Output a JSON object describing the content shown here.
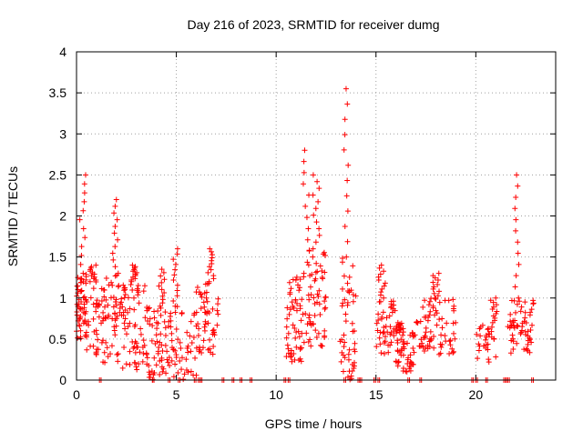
{
  "chart_data": {
    "type": "scatter",
    "title": "Day 216 of 2023, SRMTID for receiver dumg",
    "xlabel": "GPS time / hours",
    "ylabel": "SRMTID / TECUs",
    "xlim": [
      0,
      24
    ],
    "ylim": [
      0,
      4
    ],
    "xticks": [
      0,
      5,
      10,
      15,
      20
    ],
    "xtick_labels": [
      "0",
      "5",
      "10",
      "15",
      "20"
    ],
    "yticks": [
      0,
      0.5,
      1,
      1.5,
      2,
      2.5,
      3,
      3.5,
      4
    ],
    "ytick_labels": [
      "0",
      "0.5",
      "1",
      "1.5",
      "2",
      "2.5",
      "3",
      "3.5",
      "4"
    ],
    "grid": true,
    "marker": "plus",
    "color": "#ff0000",
    "series": [
      {
        "name": "SRMTID",
        "clusters": [
          {
            "x": [
              0.0,
              0.5
            ],
            "y_range": [
              0.5,
              1.3
            ],
            "peak": [
              0.3,
              2.5
            ],
            "n": 55
          },
          {
            "x": [
              0.5,
              1.2
            ],
            "y_range": [
              0.3,
              1.2
            ],
            "peak": [
              0.8,
              1.4
            ],
            "n": 30
          },
          {
            "x": [
              1.2,
              2.3
            ],
            "y_range": [
              0.2,
              1.3
            ],
            "peak": [
              1.95,
              2.2
            ],
            "n": 60
          },
          {
            "x": [
              2.3,
              3.5
            ],
            "y_range": [
              0.1,
              1.2
            ],
            "peak": [
              2.9,
              1.4
            ],
            "n": 60
          },
          {
            "x": [
              3.5,
              4.5
            ],
            "y_range": [
              0.0,
              0.9
            ],
            "peak": [
              4.3,
              1.35
            ],
            "n": 55
          },
          {
            "x": [
              4.5,
              6.0
            ],
            "y_range": [
              0.0,
              0.9
            ],
            "peak": [
              5.0,
              1.6
            ],
            "n": 55
          },
          {
            "x": [
              6.0,
              7.1
            ],
            "y_range": [
              0.3,
              1.2
            ],
            "peak": [
              6.7,
              1.6
            ],
            "n": 55
          },
          {
            "x": [
              10.5,
              11.6
            ],
            "y_range": [
              0.2,
              1.3
            ],
            "peak": [
              11.5,
              2.8
            ],
            "n": 60
          },
          {
            "x": [
              11.6,
              12.5
            ],
            "y_range": [
              0.4,
              1.6
            ],
            "peak": [
              12.0,
              2.5
            ],
            "n": 55
          },
          {
            "x": [
              13.2,
              14.0
            ],
            "y_range": [
              0.0,
              1.5
            ],
            "peak": [
              13.5,
              3.55
            ],
            "n": 50
          },
          {
            "x": [
              15.0,
              16.0
            ],
            "y_range": [
              0.3,
              1.0
            ],
            "peak": [
              15.3,
              1.4
            ],
            "n": 45
          },
          {
            "x": [
              16.0,
              17.0
            ],
            "y_range": [
              0.1,
              0.6
            ],
            "peak": [
              16.2,
              0.7
            ],
            "n": 50
          },
          {
            "x": [
              17.0,
              19.0
            ],
            "y_range": [
              0.3,
              1.0
            ],
            "peak": [
              18.0,
              1.3
            ],
            "n": 75
          },
          {
            "x": [
              20.0,
              21.0
            ],
            "y_range": [
              0.2,
              0.7
            ],
            "peak": [
              20.9,
              1.0
            ],
            "n": 30
          },
          {
            "x": [
              21.6,
              22.9
            ],
            "y_range": [
              0.3,
              1.0
            ],
            "peak": [
              22.0,
              2.5
            ],
            "n": 60
          }
        ],
        "near_zero_x": [
          1.15,
          3.8,
          4.6,
          5.1,
          5.9,
          6.1,
          6.2,
          7.3,
          7.8,
          8.2,
          8.7,
          10.4,
          10.6,
          13.4,
          14.1,
          14.2,
          14.9,
          15.1,
          16.6,
          17.2,
          19.8,
          20.0,
          20.5,
          21.4,
          21.5,
          21.6,
          22.8
        ]
      }
    ]
  }
}
